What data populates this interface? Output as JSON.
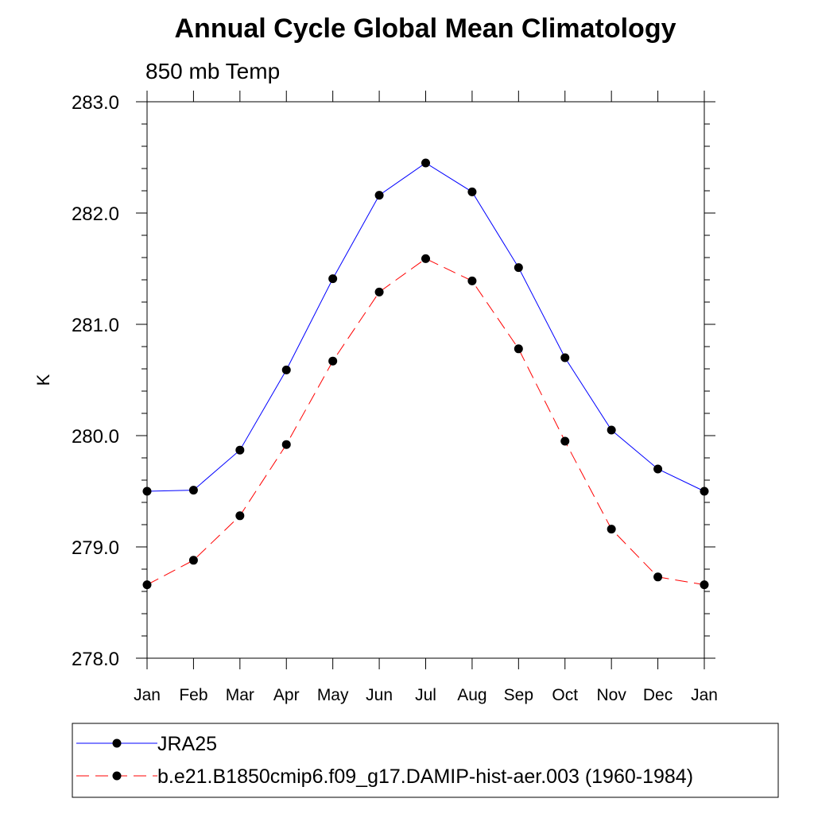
{
  "chart_data": {
    "type": "line",
    "title": "Annual Cycle Global Mean Climatology",
    "subtitle": "850 mb Temp",
    "ylabel": "K",
    "xlabel": "",
    "ylim": [
      278.0,
      283.0
    ],
    "yticks": [
      "278.0",
      "279.0",
      "280.0",
      "281.0",
      "282.0",
      "283.0"
    ],
    "categories": [
      "Jan",
      "Feb",
      "Mar",
      "Apr",
      "May",
      "Jun",
      "Jul",
      "Aug",
      "Sep",
      "Oct",
      "Nov",
      "Dec",
      "Jan"
    ],
    "series": [
      {
        "name": "JRA25",
        "color": "#0000ff",
        "dash": "solid",
        "values": [
          279.5,
          279.51,
          279.87,
          280.59,
          281.41,
          282.16,
          282.45,
          282.19,
          281.51,
          280.7,
          280.05,
          279.7,
          279.5
        ]
      },
      {
        "name": "b.e21.B1850cmip6.f09_g17.DAMIP-hist-aer.003 (1960-1984)",
        "color": "#ff0000",
        "dash": "dashed",
        "values": [
          278.66,
          278.88,
          279.28,
          279.92,
          280.67,
          281.29,
          281.59,
          281.39,
          280.78,
          279.95,
          279.16,
          278.73,
          278.66
        ]
      }
    ],
    "marker_color": "#000000",
    "legend_position": "bottom"
  }
}
